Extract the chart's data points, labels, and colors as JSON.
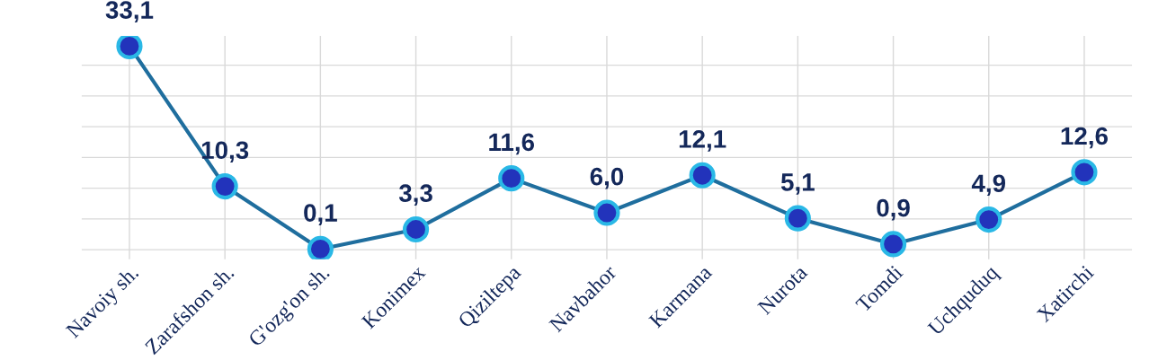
{
  "chart_data": {
    "type": "line",
    "categories": [
      "Navoiy sh.",
      "Zarafshon sh.",
      "G'ozg'on sh.",
      "Konimex",
      "Qiziltepa",
      "Navbahor",
      "Karmana",
      "Nurota",
      "Tomdi",
      "Uchquduq",
      "Xatirchi"
    ],
    "series": [
      {
        "color": "#1f6e9e",
        "values": [
          33.1,
          10.3,
          0.1,
          3.3,
          11.6,
          6.0,
          12.1,
          5.1,
          0.9,
          4.9,
          12.6
        ],
        "value_labels": [
          "33,1",
          "10,3",
          "0,1",
          "3,3",
          "11,6",
          "6,0",
          "12,1",
          "5,1",
          "0,9",
          "4,9",
          "12,6"
        ]
      }
    ],
    "marker": "circle",
    "grid": true,
    "tick_labels": "x"
  }
}
